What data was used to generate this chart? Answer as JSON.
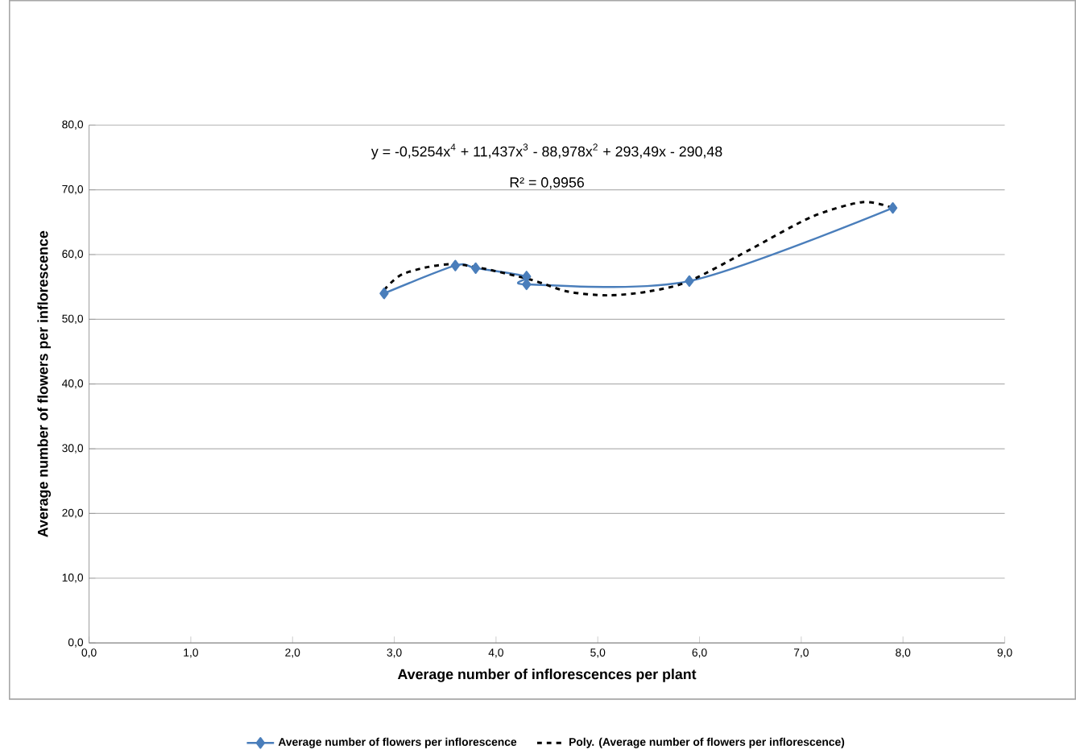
{
  "chart_data": {
    "type": "line",
    "xlabel": "Average number of inflorescences per plant",
    "ylabel": "Average number of flowers per inflorescence",
    "annotations": [
      "y = -0,5254x$^{4}$ + 11,437x$^{3}$ - 88,978x$^{2}$ + 293,49x - 290,48",
      "R² = 0,9956"
    ],
    "xlim": [
      0,
      9
    ],
    "ylim": [
      0,
      80
    ],
    "xticks": [
      {
        "value": 0,
        "label": "0,0"
      },
      {
        "value": 1,
        "label": "1,0"
      },
      {
        "value": 2,
        "label": "2,0"
      },
      {
        "value": 3,
        "label": "3,0"
      },
      {
        "value": 4,
        "label": "4,0"
      },
      {
        "value": 5,
        "label": "5,0"
      },
      {
        "value": 6,
        "label": "6,0"
      },
      {
        "value": 7,
        "label": "7,0"
      },
      {
        "value": 8,
        "label": "8,0"
      },
      {
        "value": 9,
        "label": "9,0"
      }
    ],
    "yticks": [
      {
        "value": 0,
        "label": "0,0"
      },
      {
        "value": 10,
        "label": "10,0"
      },
      {
        "value": 20,
        "label": "20,0"
      },
      {
        "value": 30,
        "label": "30,0"
      },
      {
        "value": 40,
        "label": "40,0"
      },
      {
        "value": 50,
        "label": "50,0"
      },
      {
        "value": 60,
        "label": "60,0"
      },
      {
        "value": 70,
        "label": "70,0"
      },
      {
        "value": 80,
        "label": "80,0"
      }
    ],
    "grid": "y",
    "legend": "bottom",
    "series": [
      {
        "name": "Average number of flowers per inflorescence",
        "color": "#4a7ebb",
        "marker": "diamond",
        "line_style": "solid",
        "x": [
          2.9,
          3.6,
          3.8,
          4.3,
          4.3,
          5.9,
          7.9
        ],
        "values": [
          54.0,
          58.3,
          57.9,
          56.6,
          55.4,
          55.9,
          67.2
        ]
      },
      {
        "name": "Poly. (Average number of flowers per inflorescence)",
        "color": "#000000",
        "marker": "none",
        "line_style": "dashed",
        "x": [
          2.9,
          3.1,
          3.6,
          4.3,
          4.7,
          5.1,
          5.5,
          5.9,
          6.5,
          7.1,
          7.6,
          7.9
        ],
        "values": [
          54.5,
          57.1,
          58.5,
          56.3,
          54.3,
          53.7,
          54.3,
          55.9,
          60.8,
          65.8,
          68.1,
          67.2
        ]
      }
    ]
  }
}
